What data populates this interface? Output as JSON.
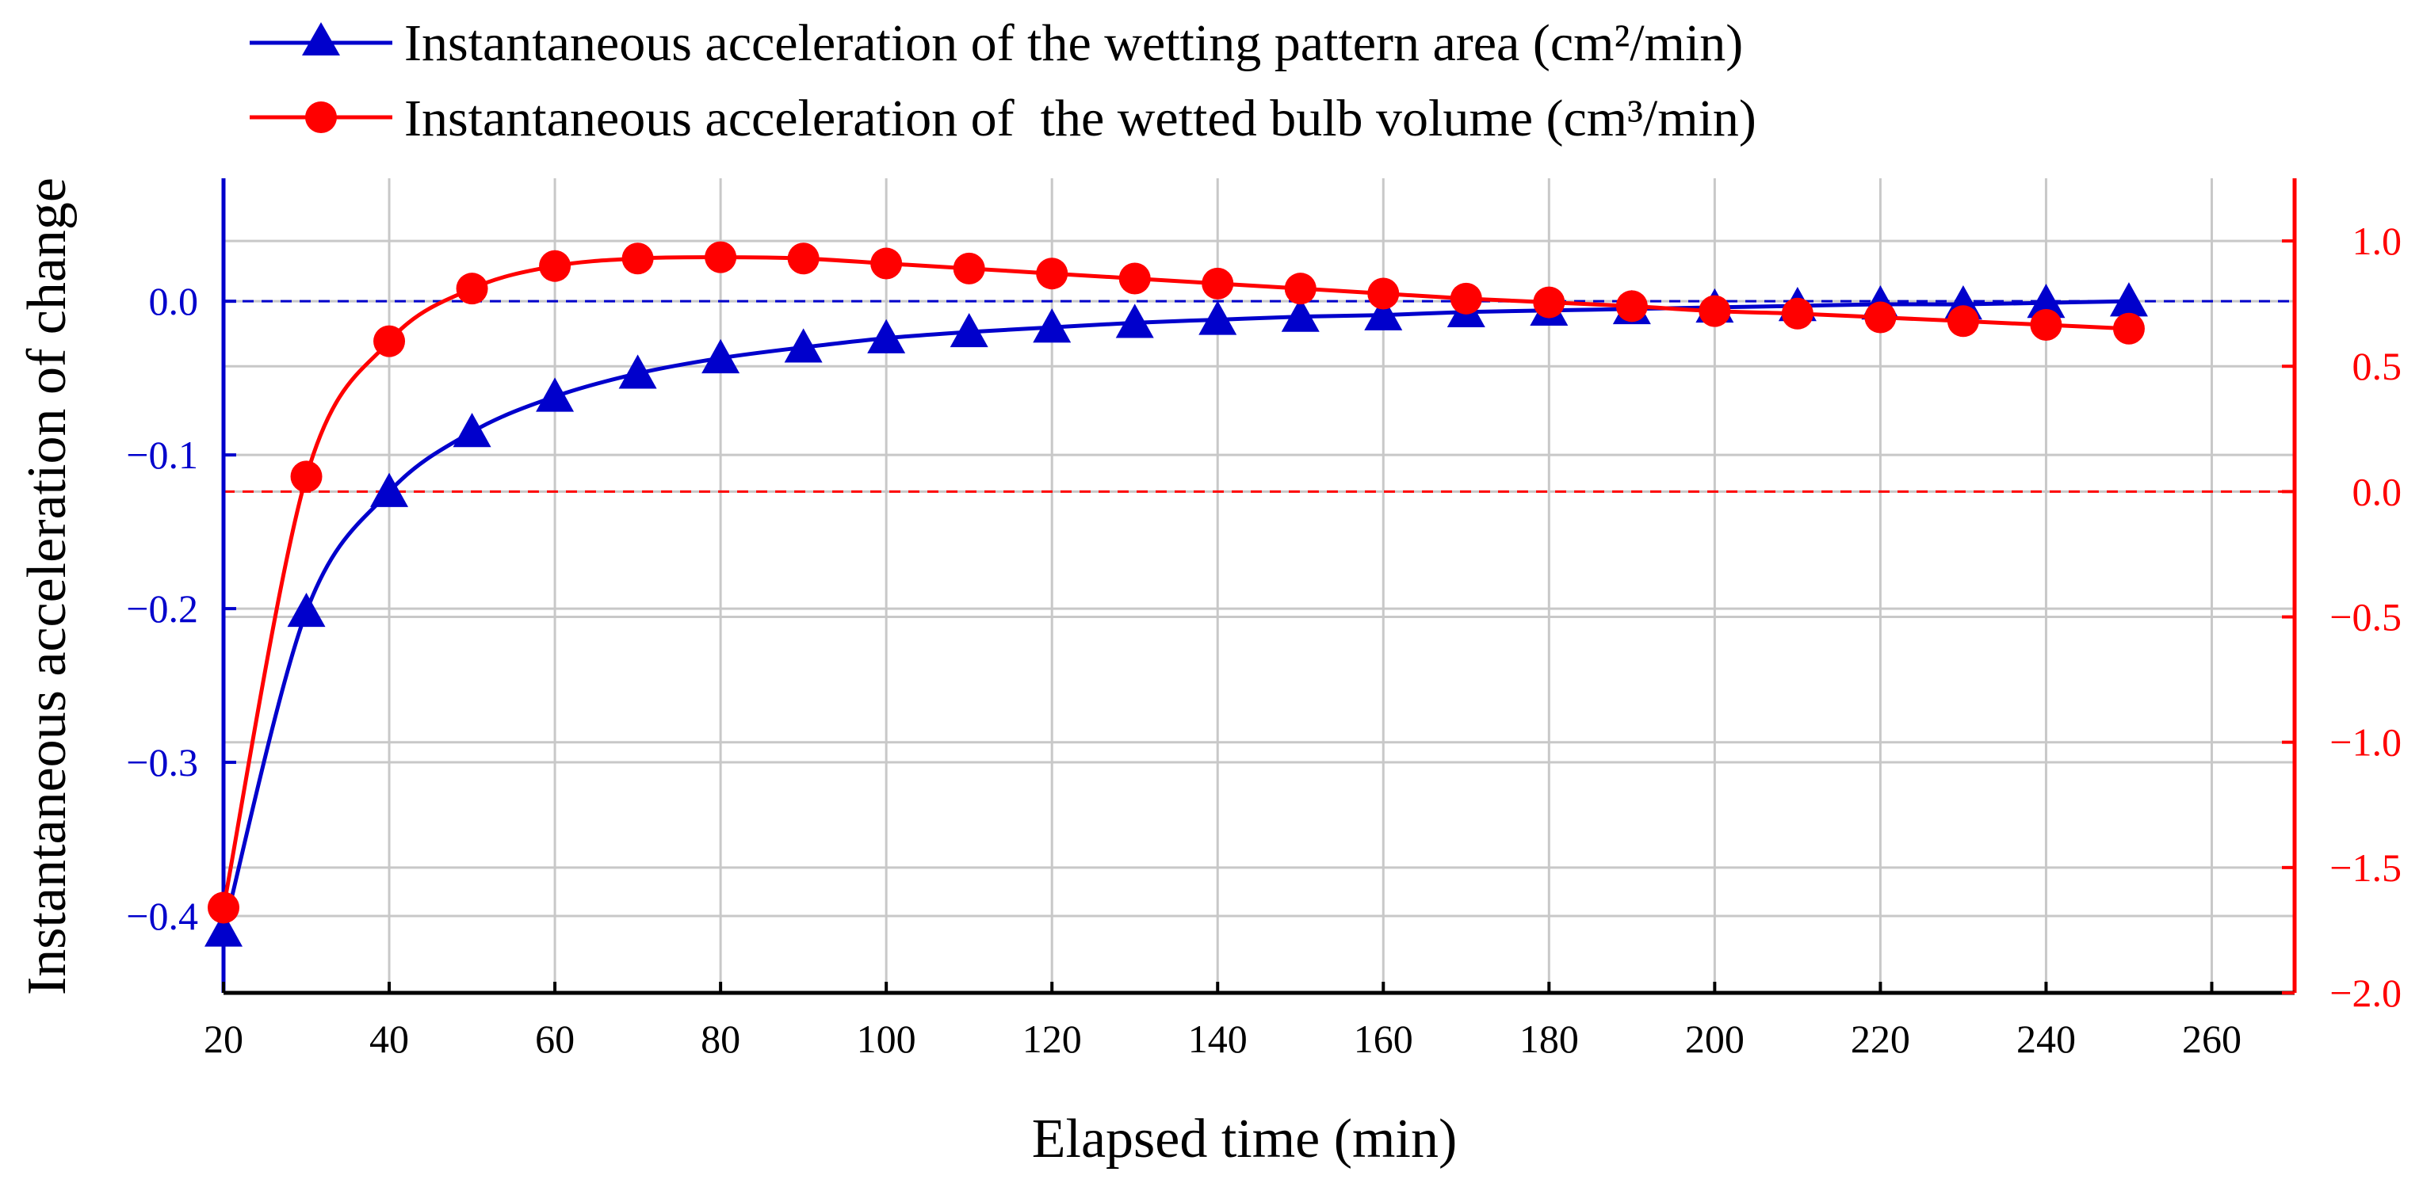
{
  "chart_data": {
    "type": "line",
    "title": "",
    "xlabel": "Elapsed time (min)",
    "ylabel_left": "Instantaneous acceleration of change",
    "ylabel_right": "",
    "x": [
      20,
      30,
      40,
      50,
      60,
      70,
      80,
      90,
      100,
      110,
      120,
      130,
      140,
      150,
      160,
      170,
      180,
      190,
      200,
      210,
      220,
      230,
      240,
      250
    ],
    "xlim": [
      20,
      270
    ],
    "xticks": [
      20,
      40,
      60,
      80,
      100,
      120,
      140,
      160,
      180,
      200,
      220,
      240,
      260
    ],
    "ylim_left": [
      -0.45,
      0.08
    ],
    "yticks_left": [
      0.0,
      -0.1,
      -0.2,
      -0.3,
      -0.4
    ],
    "ytick_labels_left": [
      "0.0",
      "−0.1",
      "−0.2",
      "−0.3",
      "−0.4"
    ],
    "ylim_right": [
      -2.0,
      1.25
    ],
    "yticks_right": [
      1.0,
      0.5,
      0.0,
      -0.5,
      -1.0,
      -1.5,
      -2.0
    ],
    "ytick_labels_right": [
      "1.0",
      "0.5",
      "0.0",
      "−0.5",
      "−1.0",
      "−1.5",
      "−2.0"
    ],
    "grid": true,
    "reference_lines": [
      {
        "axis": "left",
        "value": 0.0,
        "color": "#0000cc",
        "style": "dashed"
      },
      {
        "axis": "right",
        "value": 0.0,
        "color": "#ff0000",
        "style": "dashed"
      }
    ],
    "legend_position": "top-left",
    "series": [
      {
        "name": "Instantaneous acceleration of the wetting pattern area (cm²/min)",
        "axis": "left",
        "color": "#0000cc",
        "marker": "triangle",
        "values": [
          -0.41,
          -0.202,
          -0.124,
          -0.085,
          -0.062,
          -0.047,
          -0.037,
          -0.03,
          -0.024,
          -0.02,
          -0.017,
          -0.014,
          -0.012,
          -0.01,
          -0.009,
          -0.007,
          -0.006,
          -0.005,
          -0.004,
          -0.003,
          -0.002,
          -0.002,
          -0.001,
          0.0
        ]
      },
      {
        "name": "Instantaneous acceleration of  the wetted bulb volume (cm³/min)",
        "axis": "right",
        "color": "#ff0000",
        "marker": "circle",
        "values": [
          -1.66,
          0.06,
          0.6,
          0.81,
          0.9,
          0.93,
          0.935,
          0.93,
          0.91,
          0.89,
          0.87,
          0.85,
          0.83,
          0.81,
          0.79,
          0.77,
          0.755,
          0.74,
          0.72,
          0.71,
          0.695,
          0.68,
          0.665,
          0.65
        ]
      }
    ]
  }
}
